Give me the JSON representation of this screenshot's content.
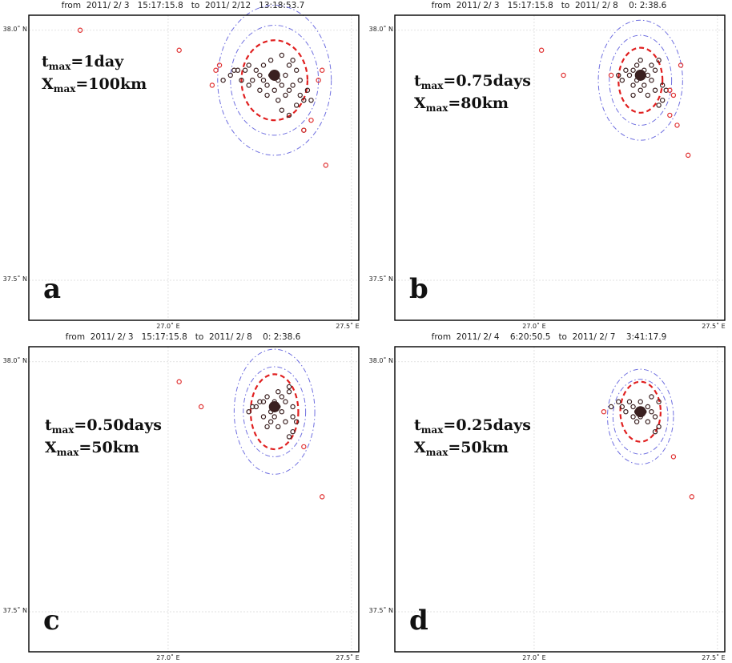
{
  "chart_data": [
    {
      "type": "scatter",
      "panel_letter": "a",
      "title": "from  2011/ 2/ 3   15:17:15.8   to  2011/ 2/12   13:18:53.7",
      "param_t": {
        "symbol": "t",
        "sub": "max",
        "value": "=1day"
      },
      "param_x": {
        "symbol": "X",
        "sub": "max",
        "value": "=100km"
      },
      "xlim": [
        26.62,
        27.52
      ],
      "ylim": [
        37.42,
        38.03
      ],
      "yticks": [
        {
          "value": 38.0,
          "label": "38.0˚ N"
        },
        {
          "value": 37.5,
          "label": "37.5˚ N"
        }
      ],
      "xticks": [
        {
          "value": 27.0,
          "label": "27.0˚ E"
        },
        {
          "value": 27.5,
          "label": "27.5˚ E"
        }
      ],
      "cluster_center": [
        27.29,
        37.91
      ],
      "cluster_events": [
        [
          27.15,
          37.9
        ],
        [
          27.17,
          37.91
        ],
        [
          27.19,
          37.92
        ],
        [
          27.21,
          37.92
        ],
        [
          27.22,
          37.93
        ],
        [
          27.24,
          37.92
        ],
        [
          27.25,
          37.91
        ],
        [
          27.26,
          37.9
        ],
        [
          27.27,
          37.89
        ],
        [
          27.28,
          37.91
        ],
        [
          27.3,
          37.9
        ],
        [
          27.31,
          37.89
        ],
        [
          27.32,
          37.91
        ],
        [
          27.33,
          37.93
        ],
        [
          27.34,
          37.94
        ],
        [
          27.35,
          37.92
        ],
        [
          27.33,
          37.88
        ],
        [
          27.32,
          37.87
        ],
        [
          27.3,
          37.86
        ],
        [
          27.29,
          37.88
        ],
        [
          27.27,
          37.87
        ],
        [
          27.36,
          37.87
        ],
        [
          27.37,
          37.86
        ],
        [
          27.35,
          37.85
        ],
        [
          27.26,
          37.93
        ],
        [
          27.23,
          37.9
        ],
        [
          27.31,
          37.95
        ],
        [
          27.28,
          37.94
        ],
        [
          27.34,
          37.89
        ],
        [
          27.36,
          37.9
        ],
        [
          27.38,
          37.88
        ],
        [
          27.39,
          37.86
        ],
        [
          27.31,
          37.84
        ],
        [
          27.33,
          37.83
        ],
        [
          27.37,
          37.8
        ],
        [
          27.25,
          37.88
        ],
        [
          27.22,
          37.89
        ],
        [
          27.2,
          37.9
        ],
        [
          27.18,
          37.92
        ]
      ],
      "outlier_events": [
        [
          26.76,
          38.0
        ],
        [
          27.03,
          37.96
        ],
        [
          27.13,
          37.92
        ],
        [
          27.14,
          37.93
        ],
        [
          27.12,
          37.89
        ],
        [
          27.41,
          37.9
        ],
        [
          27.42,
          37.92
        ],
        [
          27.39,
          37.82
        ],
        [
          27.43,
          37.73
        ],
        [
          27.37,
          37.8
        ]
      ],
      "outer_ellipses": [
        {
          "center": [
            27.29,
            37.9
          ],
          "rx": 0.12,
          "ry": 0.11
        },
        {
          "center": [
            27.29,
            37.9
          ],
          "rx": 0.155,
          "ry": 0.15
        }
      ],
      "inner_ellipse": {
        "center": [
          27.29,
          37.9
        ],
        "rx": 0.09,
        "ry": 0.08
      },
      "colors": {
        "cluster_marker": "#3a2020",
        "outlier_marker": "#e03030",
        "inner_ellipse": "#e02020",
        "outer_ellipse": "#7070e0",
        "frame": "#000000",
        "grid": "#d9d9d9"
      }
    },
    {
      "type": "scatter",
      "panel_letter": "b",
      "title": "from  2011/ 2/ 3   15:17:15.8   to  2011/ 2/ 8    0: 2:38.6",
      "param_t": {
        "symbol": "t",
        "sub": "max",
        "value": "=0.75days"
      },
      "param_x": {
        "symbol": "X",
        "sub": "max",
        "value": "=80km"
      },
      "xlim": [
        26.62,
        27.52
      ],
      "ylim": [
        37.42,
        38.03
      ],
      "yticks": [
        {
          "value": 38.0,
          "label": "38.0˚ N"
        },
        {
          "value": 37.5,
          "label": "37.5˚ N"
        }
      ],
      "xticks": [
        {
          "value": 27.0,
          "label": "27.0˚ E"
        },
        {
          "value": 27.5,
          "label": "27.5˚ E"
        }
      ],
      "cluster_center": [
        27.29,
        37.91
      ],
      "cluster_events": [
        [
          27.24,
          37.9
        ],
        [
          27.26,
          37.91
        ],
        [
          27.27,
          37.92
        ],
        [
          27.28,
          37.93
        ],
        [
          27.3,
          37.92
        ],
        [
          27.31,
          37.91
        ],
        [
          27.32,
          37.9
        ],
        [
          27.33,
          37.92
        ],
        [
          27.34,
          37.94
        ],
        [
          27.33,
          37.88
        ],
        [
          27.31,
          37.87
        ],
        [
          27.29,
          37.88
        ],
        [
          27.27,
          37.87
        ],
        [
          27.35,
          37.89
        ],
        [
          27.35,
          37.86
        ],
        [
          27.34,
          37.85
        ],
        [
          27.25,
          37.92
        ],
        [
          27.28,
          37.9
        ],
        [
          27.3,
          37.89
        ],
        [
          27.32,
          37.93
        ],
        [
          27.27,
          37.89
        ],
        [
          27.23,
          37.91
        ],
        [
          27.36,
          37.88
        ],
        [
          27.29,
          37.94
        ]
      ],
      "outlier_events": [
        [
          27.02,
          37.96
        ],
        [
          27.08,
          37.91
        ],
        [
          27.21,
          37.91
        ],
        [
          27.37,
          37.88
        ],
        [
          27.38,
          37.87
        ],
        [
          27.4,
          37.93
        ],
        [
          27.37,
          37.83
        ],
        [
          27.39,
          37.81
        ],
        [
          27.42,
          37.75
        ]
      ],
      "outer_ellipses": [
        {
          "center": [
            27.29,
            37.9
          ],
          "rx": 0.085,
          "ry": 0.09
        },
        {
          "center": [
            27.29,
            37.9
          ],
          "rx": 0.115,
          "ry": 0.12
        }
      ],
      "inner_ellipse": {
        "center": [
          27.29,
          37.9
        ],
        "rx": 0.06,
        "ry": 0.065
      },
      "colors": {
        "cluster_marker": "#3a2020",
        "outlier_marker": "#e03030",
        "inner_ellipse": "#e02020",
        "outer_ellipse": "#7070e0",
        "frame": "#000000",
        "grid": "#d9d9d9"
      }
    },
    {
      "type": "scatter",
      "panel_letter": "c",
      "title": "from  2011/ 2/ 3   15:17:15.8   to  2011/ 2/ 8    0: 2:38.6",
      "param_t": {
        "symbol": "t",
        "sub": "max",
        "value": "=0.50days"
      },
      "param_x": {
        "symbol": "X",
        "sub": "max",
        "value": "=50km"
      },
      "xlim": [
        26.62,
        27.52
      ],
      "ylim": [
        37.42,
        38.03
      ],
      "yticks": [
        {
          "value": 38.0,
          "label": "38.0˚ N"
        },
        {
          "value": 37.5,
          "label": "37.5˚ N"
        }
      ],
      "xticks": [
        {
          "value": 27.0,
          "label": "27.0˚ E"
        },
        {
          "value": 27.5,
          "label": "27.5˚ E"
        }
      ],
      "cluster_center": [
        27.29,
        37.91
      ],
      "cluster_events": [
        [
          27.22,
          37.9
        ],
        [
          27.24,
          37.91
        ],
        [
          27.26,
          37.92
        ],
        [
          27.27,
          37.93
        ],
        [
          27.29,
          37.92
        ],
        [
          27.3,
          37.91
        ],
        [
          27.31,
          37.9
        ],
        [
          27.32,
          37.92
        ],
        [
          27.33,
          37.94
        ],
        [
          27.32,
          37.88
        ],
        [
          27.3,
          37.87
        ],
        [
          27.28,
          37.88
        ],
        [
          27.27,
          37.87
        ],
        [
          27.34,
          37.89
        ],
        [
          27.34,
          37.86
        ],
        [
          27.33,
          37.85
        ],
        [
          27.25,
          37.92
        ],
        [
          27.28,
          37.9
        ],
        [
          27.29,
          37.89
        ],
        [
          27.31,
          37.93
        ],
        [
          27.26,
          37.89
        ],
        [
          27.23,
          37.91
        ],
        [
          27.35,
          37.88
        ],
        [
          27.3,
          37.94
        ],
        [
          27.33,
          37.95
        ],
        [
          27.34,
          37.91
        ]
      ],
      "outlier_events": [
        [
          27.03,
          37.96
        ],
        [
          27.09,
          37.91
        ],
        [
          27.37,
          37.83
        ],
        [
          27.42,
          37.73
        ]
      ],
      "outer_ellipses": [
        {
          "center": [
            27.29,
            37.9
          ],
          "rx": 0.085,
          "ry": 0.09
        },
        {
          "center": [
            27.29,
            37.9
          ],
          "rx": 0.11,
          "ry": 0.125
        }
      ],
      "inner_ellipse": {
        "center": [
          27.29,
          37.9
        ],
        "rx": 0.065,
        "ry": 0.075
      },
      "colors": {
        "cluster_marker": "#3a2020",
        "outlier_marker": "#e03030",
        "inner_ellipse": "#e02020",
        "outer_ellipse": "#7070e0",
        "frame": "#000000",
        "grid": "#d9d9d9"
      }
    },
    {
      "type": "scatter",
      "panel_letter": "d",
      "title": "from  2011/ 2/ 4    6:20:50.5   to  2011/ 2/ 7    3:41:17.9",
      "param_t": {
        "symbol": "t",
        "sub": "max",
        "value": "=0.25days"
      },
      "param_x": {
        "symbol": "X",
        "sub": "max",
        "value": "=50km"
      },
      "xlim": [
        26.62,
        27.52
      ],
      "ylim": [
        37.42,
        38.03
      ],
      "yticks": [
        {
          "value": 38.0,
          "label": "38.0˚ N"
        },
        {
          "value": 37.5,
          "label": "37.5˚ N"
        }
      ],
      "xticks": [
        {
          "value": 27.0,
          "label": "27.0˚ E"
        },
        {
          "value": 27.5,
          "label": "27.5˚ E"
        }
      ],
      "cluster_center": [
        27.29,
        37.9
      ],
      "cluster_events": [
        [
          27.21,
          37.91
        ],
        [
          27.23,
          37.92
        ],
        [
          27.24,
          37.91
        ],
        [
          27.26,
          37.92
        ],
        [
          27.27,
          37.91
        ],
        [
          27.25,
          37.9
        ],
        [
          27.28,
          37.9
        ],
        [
          27.29,
          37.89
        ],
        [
          27.3,
          37.9
        ],
        [
          27.31,
          37.91
        ],
        [
          27.32,
          37.9
        ],
        [
          27.31,
          37.88
        ],
        [
          27.33,
          37.89
        ],
        [
          27.34,
          37.92
        ],
        [
          27.34,
          37.87
        ],
        [
          27.33,
          37.86
        ],
        [
          27.28,
          37.88
        ],
        [
          27.27,
          37.89
        ],
        [
          27.29,
          37.92
        ],
        [
          27.32,
          37.93
        ]
      ],
      "outlier_events": [
        [
          27.19,
          37.9
        ],
        [
          27.38,
          37.81
        ],
        [
          27.43,
          37.73
        ]
      ],
      "outer_ellipses": [
        {
          "center": [
            27.29,
            37.89
          ],
          "rx": 0.075,
          "ry": 0.075
        },
        {
          "center": [
            27.29,
            37.89
          ],
          "rx": 0.09,
          "ry": 0.095
        }
      ],
      "inner_ellipse": {
        "center": [
          27.29,
          37.9
        ],
        "rx": 0.055,
        "ry": 0.06
      },
      "colors": {
        "cluster_marker": "#3a2020",
        "outlier_marker": "#e03030",
        "inner_ellipse": "#e02020",
        "outer_ellipse": "#7070e0",
        "frame": "#000000",
        "grid": "#d9d9d9"
      }
    }
  ]
}
